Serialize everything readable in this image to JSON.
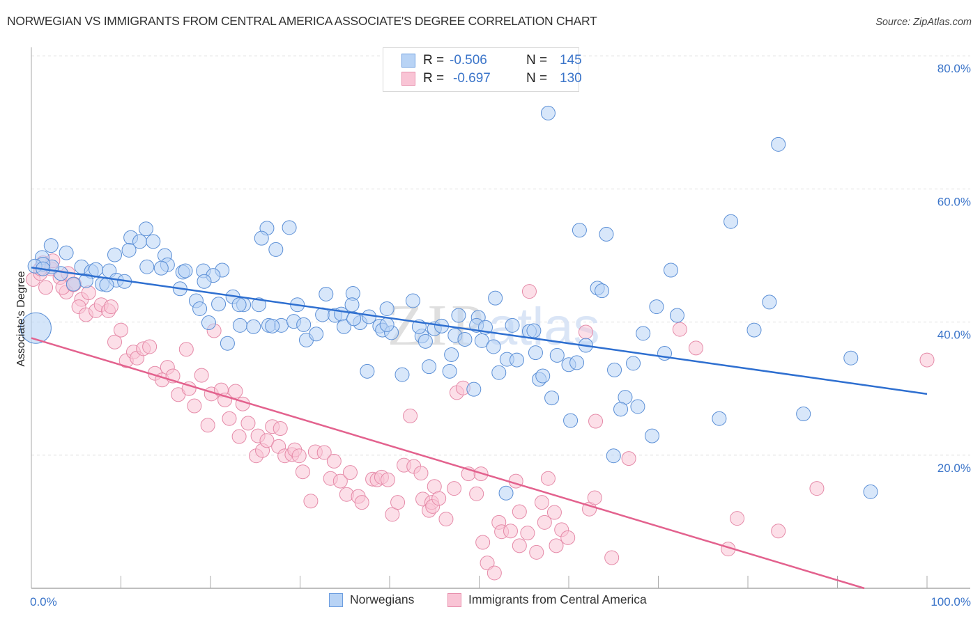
{
  "header": {
    "title": "NORWEGIAN VS IMMIGRANTS FROM CENTRAL AMERICA ASSOCIATE'S DEGREE CORRELATION CHART",
    "source": "Source: ZipAtlas.com"
  },
  "watermark": {
    "zip": "ZIP",
    "atlas": "atlas"
  },
  "colors": {
    "blue_fill": "#b8d3f5",
    "blue_stroke": "#5b8fd6",
    "blue_line": "#2e6fd0",
    "pink_fill": "#f9c4d5",
    "pink_stroke": "#e58aa8",
    "pink_line": "#e3628e",
    "tick_text": "#3a74c9"
  },
  "stats_legend": [
    {
      "r_label": "R =",
      "r_value": "-0.506",
      "n_label": "N =",
      "n_value": "145"
    },
    {
      "r_label": "R =",
      "r_value": "-0.697",
      "n_label": "N =",
      "n_value": "130"
    }
  ],
  "chart_data": {
    "type": "scatter",
    "title": "NORWEGIAN VS IMMIGRANTS FROM CENTRAL AMERICA ASSOCIATE'S DEGREE CORRELATION CHART",
    "xlabel": "",
    "ylabel": "Associate's Degree",
    "xlim": [
      0,
      100
    ],
    "ylim": [
      0,
      82
    ],
    "x_tick_labels": [
      "0.0%",
      "100.0%"
    ],
    "y_ticks": [
      20,
      40,
      60,
      80
    ],
    "y_tick_labels": [
      "20.0%",
      "40.0%",
      "60.0%",
      "80.0%"
    ],
    "grid": true,
    "legend_position": "bottom-center",
    "series": [
      {
        "name": "Norwegians",
        "r": -0.506,
        "n": 145,
        "trend": {
          "x": [
            0,
            100
          ],
          "y": [
            48.2,
            29.2
          ]
        },
        "big_point": {
          "x": 0.5,
          "y": 39.1
        },
        "points": [
          [
            57.7,
            71.4
          ],
          [
            83.4,
            66.7
          ],
          [
            78.1,
            55.1
          ],
          [
            61.2,
            53.8
          ],
          [
            64.2,
            53.2
          ],
          [
            12.8,
            54.0
          ],
          [
            26.3,
            54.1
          ],
          [
            28.8,
            54.2
          ],
          [
            11.1,
            52.7
          ],
          [
            12.1,
            52.1
          ],
          [
            13.6,
            52.1
          ],
          [
            25.7,
            52.6
          ],
          [
            27.3,
            50.9
          ],
          [
            2.2,
            51.5
          ],
          [
            3.9,
            50.4
          ],
          [
            1.2,
            49.7
          ],
          [
            9.3,
            50.1
          ],
          [
            14.9,
            50.0
          ],
          [
            10.9,
            50.8
          ],
          [
            16.9,
            47.5
          ],
          [
            15.2,
            48.6
          ],
          [
            14.5,
            48.1
          ],
          [
            12.9,
            48.3
          ],
          [
            17.2,
            47.7
          ],
          [
            5.6,
            48.3
          ],
          [
            6.7,
            47.6
          ],
          [
            8.7,
            47.7
          ],
          [
            7.2,
            47.9
          ],
          [
            9.5,
            46.3
          ],
          [
            7.9,
            45.7
          ],
          [
            6.1,
            46.2
          ],
          [
            8.4,
            45.6
          ],
          [
            10.4,
            46.1
          ],
          [
            3.3,
            47.3
          ],
          [
            4.7,
            45.7
          ],
          [
            2.3,
            48.3
          ],
          [
            1.3,
            48.7
          ],
          [
            0.4,
            48.4
          ],
          [
            1.3,
            48.0
          ],
          [
            19.2,
            47.7
          ],
          [
            21.3,
            47.8
          ],
          [
            20.3,
            47.0
          ],
          [
            19.3,
            46.1
          ],
          [
            16.6,
            45.0
          ],
          [
            18.4,
            43.2
          ],
          [
            18.8,
            42.0
          ],
          [
            20.9,
            42.7
          ],
          [
            22.5,
            43.8
          ],
          [
            23.7,
            42.6
          ],
          [
            25.4,
            42.6
          ],
          [
            23.2,
            42.6
          ],
          [
            19.8,
            39.9
          ],
          [
            21.9,
            36.8
          ],
          [
            23.3,
            39.5
          ],
          [
            24.8,
            39.3
          ],
          [
            26.5,
            39.5
          ],
          [
            27.9,
            39.5
          ],
          [
            26.9,
            39.4
          ],
          [
            29.3,
            40.1
          ],
          [
            30.4,
            39.6
          ],
          [
            30.7,
            37.3
          ],
          [
            31.8,
            38.2
          ],
          [
            32.9,
            44.2
          ],
          [
            29.7,
            42.6
          ],
          [
            35.9,
            44.3
          ],
          [
            32.5,
            41.1
          ],
          [
            33.9,
            41.0
          ],
          [
            34.6,
            41.2
          ],
          [
            35.8,
            42.6
          ],
          [
            34.9,
            39.3
          ],
          [
            36.7,
            39.9
          ],
          [
            36.0,
            40.5
          ],
          [
            38.9,
            39.4
          ],
          [
            37.7,
            40.8
          ],
          [
            37.5,
            32.6
          ],
          [
            39.7,
            42.0
          ],
          [
            39.2,
            38.8
          ],
          [
            40.2,
            38.4
          ],
          [
            42.6,
            43.2
          ],
          [
            39.7,
            39.6
          ],
          [
            41.4,
            32.1
          ],
          [
            43.6,
            37.9
          ],
          [
            43.3,
            39.3
          ],
          [
            44.0,
            37.1
          ],
          [
            44.4,
            33.3
          ],
          [
            45.0,
            39.0
          ],
          [
            45.8,
            39.4
          ],
          [
            46.7,
            32.6
          ],
          [
            47.3,
            38.0
          ],
          [
            46.9,
            35.1
          ],
          [
            47.7,
            41.0
          ],
          [
            48.4,
            37.4
          ],
          [
            50.3,
            37.2
          ],
          [
            49.9,
            40.7
          ],
          [
            49.4,
            29.9
          ],
          [
            49.7,
            39.5
          ],
          [
            50.7,
            39.2
          ],
          [
            51.6,
            36.3
          ],
          [
            51.8,
            43.6
          ],
          [
            52.2,
            32.4
          ],
          [
            53.7,
            39.5
          ],
          [
            53.1,
            34.4
          ],
          [
            54.2,
            34.3
          ],
          [
            55.6,
            38.6
          ],
          [
            56.1,
            38.7
          ],
          [
            56.7,
            31.4
          ],
          [
            57.1,
            31.9
          ],
          [
            56.3,
            35.4
          ],
          [
            58.1,
            28.6
          ],
          [
            58.7,
            35.0
          ],
          [
            60.2,
            25.2
          ],
          [
            60.0,
            33.6
          ],
          [
            60.9,
            33.9
          ],
          [
            61.9,
            36.5
          ],
          [
            63.2,
            45.1
          ],
          [
            63.7,
            44.7
          ],
          [
            65.1,
            32.8
          ],
          [
            66.3,
            28.7
          ],
          [
            65.8,
            26.9
          ],
          [
            67.2,
            33.8
          ],
          [
            67.7,
            27.3
          ],
          [
            68.3,
            38.3
          ],
          [
            69.3,
            22.9
          ],
          [
            69.8,
            42.3
          ],
          [
            70.7,
            35.3
          ],
          [
            72.1,
            41.0
          ],
          [
            71.4,
            47.8
          ],
          [
            76.8,
            25.5
          ],
          [
            80.7,
            38.8
          ],
          [
            82.4,
            43.0
          ],
          [
            86.2,
            26.2
          ],
          [
            93.7,
            14.5
          ],
          [
            91.5,
            34.6
          ],
          [
            53.0,
            14.3
          ],
          [
            65.0,
            19.9
          ]
        ]
      },
      {
        "name": "Immigrants from Central America",
        "r": -0.697,
        "n": 130,
        "trend": {
          "x": [
            0,
            93
          ],
          "y": [
            37.6,
            0
          ]
        },
        "points": [
          [
            0.2,
            46.4
          ],
          [
            1.3,
            48.9
          ],
          [
            2.2,
            48.0
          ],
          [
            1.0,
            47.3
          ],
          [
            3.2,
            46.7
          ],
          [
            4.1,
            47.3
          ],
          [
            4.8,
            45.7
          ],
          [
            3.9,
            44.5
          ],
          [
            5.6,
            43.4
          ],
          [
            6.4,
            44.4
          ],
          [
            5.3,
            42.3
          ],
          [
            6.1,
            41.1
          ],
          [
            7.2,
            41.7
          ],
          [
            7.8,
            42.6
          ],
          [
            8.6,
            41.7
          ],
          [
            8.9,
            42.3
          ],
          [
            9.3,
            37.0
          ],
          [
            10.0,
            38.8
          ],
          [
            10.6,
            34.2
          ],
          [
            11.4,
            35.5
          ],
          [
            11.8,
            34.6
          ],
          [
            12.5,
            36.0
          ],
          [
            13.2,
            36.3
          ],
          [
            13.8,
            32.3
          ],
          [
            14.6,
            31.3
          ],
          [
            15.2,
            33.2
          ],
          [
            15.8,
            31.9
          ],
          [
            16.4,
            29.1
          ],
          [
            17.3,
            35.9
          ],
          [
            17.6,
            30.0
          ],
          [
            18.2,
            27.4
          ],
          [
            19.0,
            32.0
          ],
          [
            19.7,
            24.5
          ],
          [
            20.1,
            29.2
          ],
          [
            20.4,
            38.7
          ],
          [
            21.2,
            29.8
          ],
          [
            21.6,
            28.3
          ],
          [
            22.1,
            25.5
          ],
          [
            22.8,
            29.6
          ],
          [
            23.6,
            27.7
          ],
          [
            24.2,
            24.8
          ],
          [
            25.3,
            22.9
          ],
          [
            23.2,
            22.8
          ],
          [
            25.1,
            19.9
          ],
          [
            25.8,
            20.7
          ],
          [
            26.3,
            22.2
          ],
          [
            26.9,
            24.3
          ],
          [
            27.6,
            21.3
          ],
          [
            27.8,
            24.0
          ],
          [
            28.3,
            19.9
          ],
          [
            29.1,
            20.1
          ],
          [
            29.4,
            20.8
          ],
          [
            29.9,
            19.9
          ],
          [
            30.3,
            17.5
          ],
          [
            31.2,
            13.1
          ],
          [
            31.7,
            20.5
          ],
          [
            32.7,
            20.4
          ],
          [
            33.4,
            16.5
          ],
          [
            33.8,
            19.1
          ],
          [
            34.5,
            16.1
          ],
          [
            35.2,
            14.1
          ],
          [
            35.6,
            17.4
          ],
          [
            36.5,
            13.8
          ],
          [
            36.9,
            12.9
          ],
          [
            38.1,
            16.4
          ],
          [
            38.6,
            16.3
          ],
          [
            39.1,
            16.7
          ],
          [
            39.8,
            16.3
          ],
          [
            40.3,
            11.1
          ],
          [
            40.9,
            12.9
          ],
          [
            41.6,
            18.5
          ],
          [
            42.3,
            25.9
          ],
          [
            42.7,
            18.3
          ],
          [
            43.5,
            17.3
          ],
          [
            43.7,
            13.4
          ],
          [
            44.4,
            11.7
          ],
          [
            44.7,
            12.9
          ],
          [
            44.8,
            12.3
          ],
          [
            45.0,
            15.3
          ],
          [
            45.5,
            13.5
          ],
          [
            46.3,
            10.4
          ],
          [
            47.2,
            15.0
          ],
          [
            47.5,
            29.4
          ],
          [
            48.2,
            30.1
          ],
          [
            48.8,
            17.2
          ],
          [
            49.7,
            14.2
          ],
          [
            50.2,
            17.2
          ],
          [
            50.4,
            6.9
          ],
          [
            50.9,
            3.8
          ],
          [
            51.7,
            2.3
          ],
          [
            52.2,
            9.9
          ],
          [
            52.5,
            8.5
          ],
          [
            53.5,
            8.6
          ],
          [
            54.1,
            16.1
          ],
          [
            54.5,
            11.5
          ],
          [
            54.5,
            6.4
          ],
          [
            55.6,
            44.6
          ],
          [
            55.4,
            8.3
          ],
          [
            56.4,
            5.4
          ],
          [
            57.0,
            12.9
          ],
          [
            57.3,
            9.9
          ],
          [
            57.7,
            16.5
          ],
          [
            58.4,
            11.4
          ],
          [
            58.6,
            6.4
          ],
          [
            59.2,
            8.8
          ],
          [
            59.9,
            7.6
          ],
          [
            61.9,
            38.5
          ],
          [
            62.3,
            11.9
          ],
          [
            62.9,
            13.6
          ],
          [
            63.0,
            25.1
          ],
          [
            64.8,
            4.6
          ],
          [
            66.7,
            19.5
          ],
          [
            72.4,
            38.9
          ],
          [
            74.2,
            36.1
          ],
          [
            77.8,
            5.9
          ],
          [
            78.8,
            10.5
          ],
          [
            83.4,
            8.6
          ],
          [
            87.7,
            15.0
          ],
          [
            100.0,
            34.3
          ],
          [
            1.0,
            48.0
          ],
          [
            2.4,
            49.2
          ],
          [
            1.6,
            45.2
          ],
          [
            3.5,
            45.2
          ],
          [
            4.7,
            45.6
          ]
        ]
      }
    ]
  },
  "bottom_legend": [
    {
      "label": "Norwegians"
    },
    {
      "label": "Immigrants from Central America"
    }
  ]
}
